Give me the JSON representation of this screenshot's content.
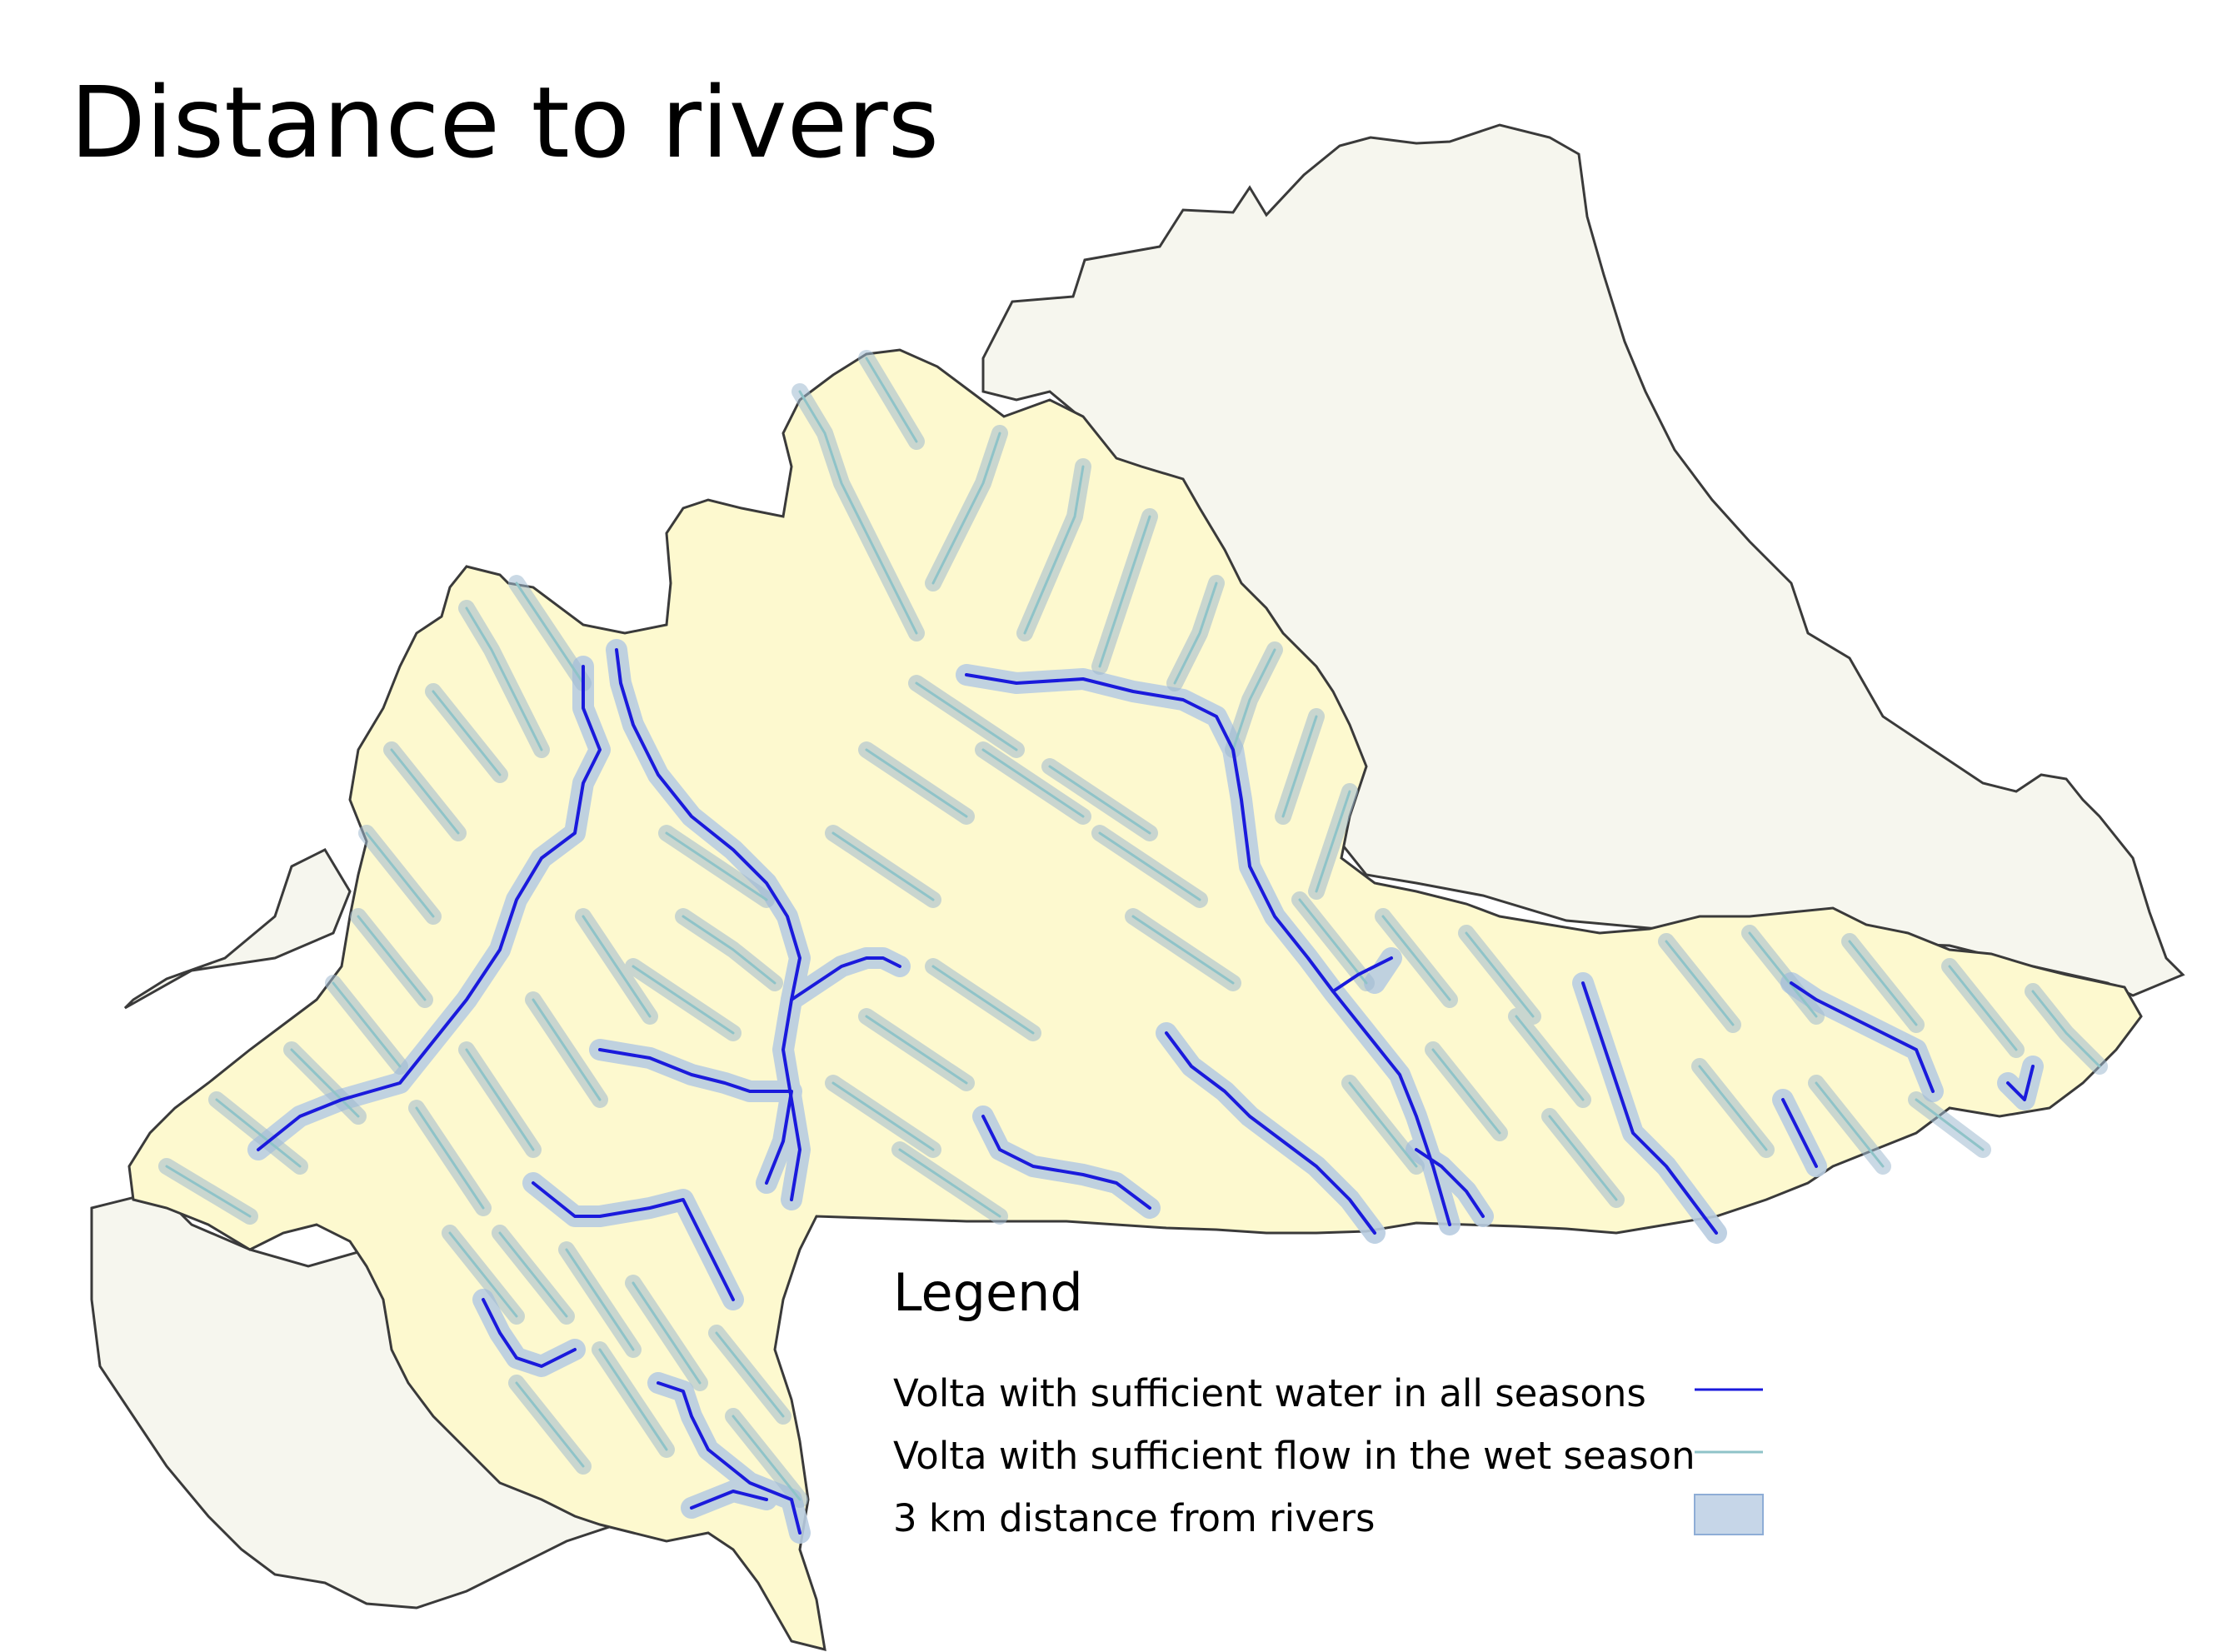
{
  "title": "Distance to rivers",
  "legend": {
    "title": "Legend",
    "items": [
      {
        "label": "Volta with sufficient water in all seasons",
        "symbol": "line",
        "color": "#1a1adc"
      },
      {
        "label": "Volta with sufficient flow in the wet season",
        "symbol": "line",
        "color": "#8fc3c8"
      },
      {
        "label": "3 km distance from rivers",
        "symbol": "fill",
        "color": "#c6d6e8",
        "stroke": "#8eadd6"
      }
    ]
  },
  "colors": {
    "basin_fill": "#fdf9cf",
    "outside_fill": "#f6f6ee",
    "border": "#3a3a3a",
    "permanent_river": "#1a1adc",
    "seasonal_river": "#8fc3c8",
    "buffer_fill": "#c6d6e8",
    "buffer_stroke": "#8eadd6"
  }
}
